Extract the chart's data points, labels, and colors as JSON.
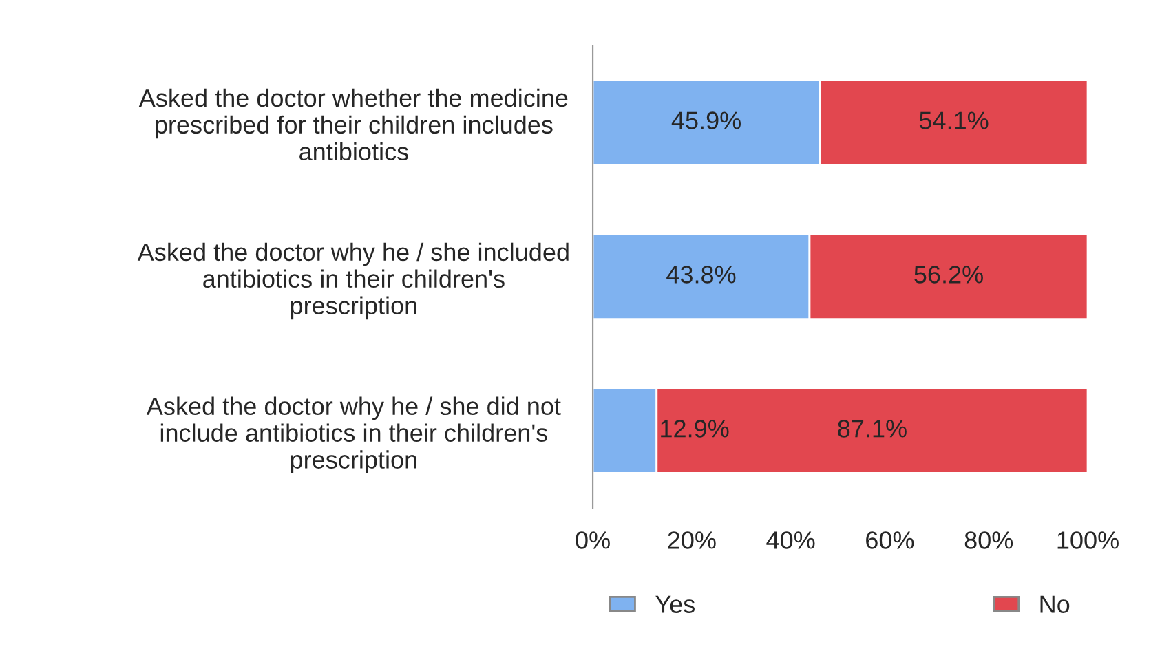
{
  "chart_data": {
    "type": "bar",
    "orientation": "horizontal",
    "stacked": true,
    "categories": [
      "Asked the doctor whether the medicine prescribed for their children includes antibiotics",
      "Asked the doctor why he / she included antibiotics in their children's prescription",
      "Asked the doctor why he / she did not include antibiotics in their children's prescription"
    ],
    "series": [
      {
        "name": "Yes",
        "color": "#7fb2f0",
        "values": [
          45.9,
          43.8,
          12.9
        ],
        "value_labels": [
          "45.9%",
          "43.8%",
          "12.9%"
        ]
      },
      {
        "name": "No",
        "color": "#e2474f",
        "values": [
          54.1,
          56.2,
          87.1
        ],
        "value_labels": [
          "54.1%",
          "56.2%",
          "87.1%"
        ]
      }
    ],
    "xlim": [
      0,
      100
    ],
    "xticks": [
      {
        "value": 0,
        "label": "0%"
      },
      {
        "value": 20,
        "label": "20%"
      },
      {
        "value": 40,
        "label": "40%"
      },
      {
        "value": 60,
        "label": "60%"
      },
      {
        "value": 80,
        "label": "80%"
      },
      {
        "value": 100,
        "label": "100%"
      }
    ],
    "grid": false,
    "legend": "bottom"
  }
}
